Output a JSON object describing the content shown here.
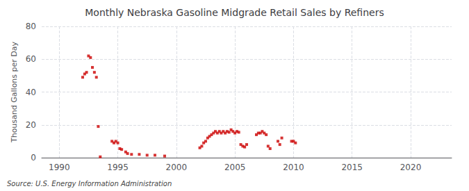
{
  "chart_data": {
    "type": "scatter",
    "title": "Monthly Nebraska Gasoline Midgrade Retail Sales by Refiners",
    "ylabel": "Thousand Gallons per Day",
    "annotation": "Source: U.S. Energy Information Administration",
    "color": "#cc0000",
    "marker": "square",
    "grid": true,
    "xlim": [
      1988.5,
      2023.5
    ],
    "xticks": [
      1990,
      1995,
      2000,
      2005,
      2010,
      2015,
      2020
    ],
    "ylim": [
      0,
      80
    ],
    "yticks": [
      0,
      20,
      40,
      60,
      80
    ],
    "x": [
      1992.0,
      1992.17,
      1992.33,
      1992.5,
      1992.67,
      1992.83,
      1993.0,
      1993.17,
      1993.33,
      1993.5,
      1994.5,
      1994.67,
      1994.83,
      1995.0,
      1995.17,
      1995.33,
      1995.67,
      1995.83,
      1996.17,
      1996.83,
      1997.5,
      1998.17,
      1999.0,
      2002.0,
      2002.17,
      2002.33,
      2002.5,
      2002.67,
      2002.83,
      2003.0,
      2003.17,
      2003.33,
      2003.5,
      2003.67,
      2003.83,
      2004.0,
      2004.17,
      2004.33,
      2004.5,
      2004.67,
      2004.83,
      2005.0,
      2005.17,
      2005.33,
      2005.5,
      2005.67,
      2005.83,
      2006.0,
      2006.83,
      2007.0,
      2007.17,
      2007.33,
      2007.5,
      2007.67,
      2007.83,
      2008.0,
      2008.67,
      2008.83,
      2009.0,
      2009.83,
      2010.0,
      2010.17
    ],
    "values": [
      49.0,
      51.0,
      52.0,
      62.0,
      61.0,
      55.0,
      52.0,
      49.0,
      19.0,
      0.5,
      10.0,
      9.0,
      10.0,
      9.0,
      5.5,
      5.0,
      3.5,
      2.5,
      2.0,
      2.0,
      1.5,
      1.5,
      1.0,
      6.0,
      7.0,
      9.0,
      10.0,
      12.0,
      13.0,
      14.0,
      15.0,
      16.0,
      15.0,
      16.0,
      15.0,
      16.0,
      15.0,
      16.0,
      15.5,
      17.0,
      16.0,
      15.0,
      16.0,
      15.5,
      8.0,
      7.0,
      6.5,
      8.0,
      14.0,
      15.0,
      15.0,
      16.0,
      15.0,
      14.0,
      7.0,
      5.5,
      10.0,
      8.0,
      12.0,
      10.0,
      10.0,
      9.0
    ]
  }
}
